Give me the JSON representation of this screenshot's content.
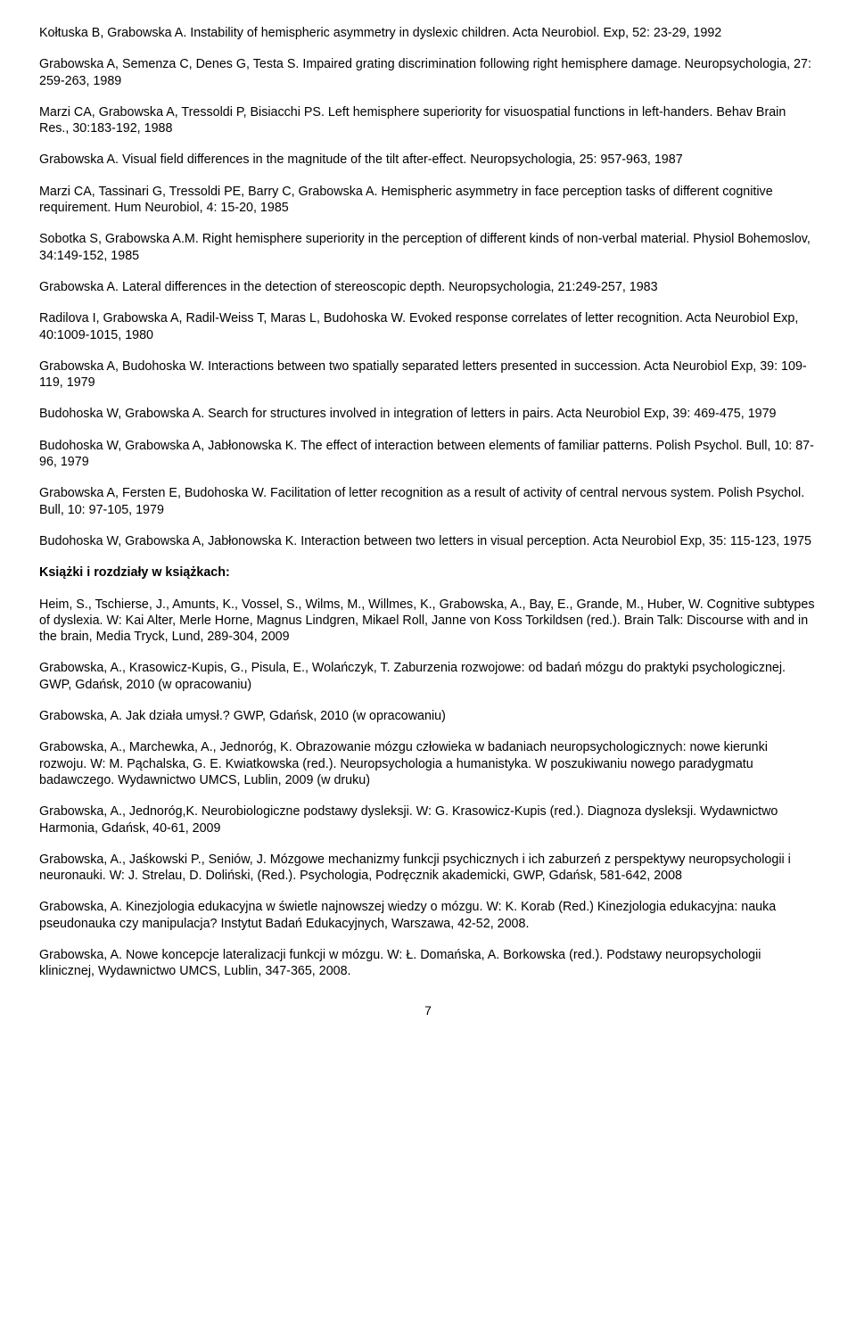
{
  "refs": [
    "Kołtuska B, Grabowska A. Instability of hemispheric asymmetry in dyslexic children. Acta Neurobiol. Exp, 52: 23-29, 1992",
    "Grabowska A, Semenza C, Denes G, Testa S. Impaired grating discrimination following right hemisphere damage. Neuropsychologia, 27: 259-263, 1989",
    "Marzi CA, Grabowska A, Tressoldi P, Bisiacchi PS. Left hemisphere superiority for visuospatial functions in left-handers. Behav Brain Res., 30:183-192, 1988",
    "Grabowska A. Visual field differences in the magnitude of the tilt after-effect. Neuropsychologia, 25: 957-963, 1987",
    "Marzi CA, Tassinari G, Tressoldi PE, Barry C, Grabowska A. Hemispheric asymmetry in face perception tasks of different cognitive requirement. Hum Neurobiol, 4: 15-20, 1985",
    "Sobotka S, Grabowska A.M. Right hemisphere superiority in the perception of different kinds of non-verbal material. Physiol Bohemoslov, 34:149-152, 1985",
    "Grabowska A. Lateral differences in the detection of stereoscopic depth. Neuropsychologia, 21:249-257, 1983",
    "Radilova I, Grabowska A, Radil-Weiss T, Maras L, Budohoska W. Evoked response correlates of letter recognition. Acta Neurobiol Exp, 40:1009-1015, 1980",
    "Grabowska A, Budohoska W. Interactions between two spatially separated letters presented in succession. Acta Neurobiol Exp, 39: 109-119, 1979",
    "Budohoska W, Grabowska A. Search for structures involved in integration of letters in pairs. Acta Neurobiol Exp, 39: 469-475, 1979",
    "Budohoska W, Grabowska A, Jabłonowska K. The effect of interaction between elements of familiar patterns. Polish Psychol. Bull, 10: 87-96, 1979",
    "Grabowska A, Fersten E, Budohoska W. Facilitation of letter recognition as a result of activity of central nervous system. Polish Psychol. Bull, 10: 97-105, 1979",
    "Budohoska W, Grabowska A, Jabłonowska K. Interaction between two letters in visual perception. Acta Neurobiol Exp, 35: 115-123, 1975"
  ],
  "section_heading": "Książki i rozdziały w książkach:",
  "books": [
    "Heim, S., Tschierse, J., Amunts, K., Vossel, S., Wilms, M., Willmes, K., Grabowska, A., Bay, E., Grande, M., Huber, W. Cognitive subtypes of dyslexia. W: Kai Alter, Merle Horne, Magnus Lindgren, Mikael Roll, Janne von Koss Torkildsen (red.). Brain Talk: Discourse with and in the brain, Media Tryck, Lund, 289-304, 2009",
    "Grabowska, A., Krasowicz-Kupis, G., Pisula, E., Wolańczyk, T. Zaburzenia rozwojowe: od badań mózgu do praktyki psychologicznej. GWP, Gdańsk, 2010 (w opracowaniu)",
    "Grabowska, A. Jak działa umysł.? GWP, Gdańsk, 2010 (w opracowaniu)",
    "Grabowska, A., Marchewka, A., Jednoróg, K. Obrazowanie mózgu człowieka w badaniach neuropsychologicznych: nowe kierunki rozwoju. W: M. Pąchalska, G. E. Kwiatkowska (red.). Neuropsychologia a humanistyka. W poszukiwaniu nowego paradygmatu badawczego. Wydawnictwo UMCS, Lublin, 2009 (w druku)",
    "Grabowska, A., Jednoróg,K. Neurobiologiczne podstawy dysleksji. W: G. Krasowicz-Kupis (red.). Diagnoza dysleksji. Wydawnictwo Harmonia, Gdańsk, 40-61, 2009",
    "Grabowska, A., Jaśkowski P., Seniów, J. Mózgowe mechanizmy funkcji psychicznych i ich zaburzeń z perspektywy neuropsychologii i neuronauki. W: J. Strelau, D. Doliński, (Red.). Psychologia, Podręcznik akademicki, GWP, Gdańsk, 581-642, 2008",
    "Grabowska, A. Kinezjologia edukacyjna w świetle najnowszej wiedzy o mózgu. W: K. Korab (Red.) Kinezjologia edukacyjna: nauka pseudonauka czy manipulacja? Instytut Badań Edukacyjnych, Warszawa, 42-52, 2008.",
    "Grabowska, A. Nowe koncepcje lateralizacji funkcji w mózgu. W: Ł. Domańska, A.  Borkowska (red.). Podstawy neuropsychologii klinicznej, Wydawnictwo UMCS, Lublin, 347-365, 2008."
  ],
  "page_number": "7"
}
